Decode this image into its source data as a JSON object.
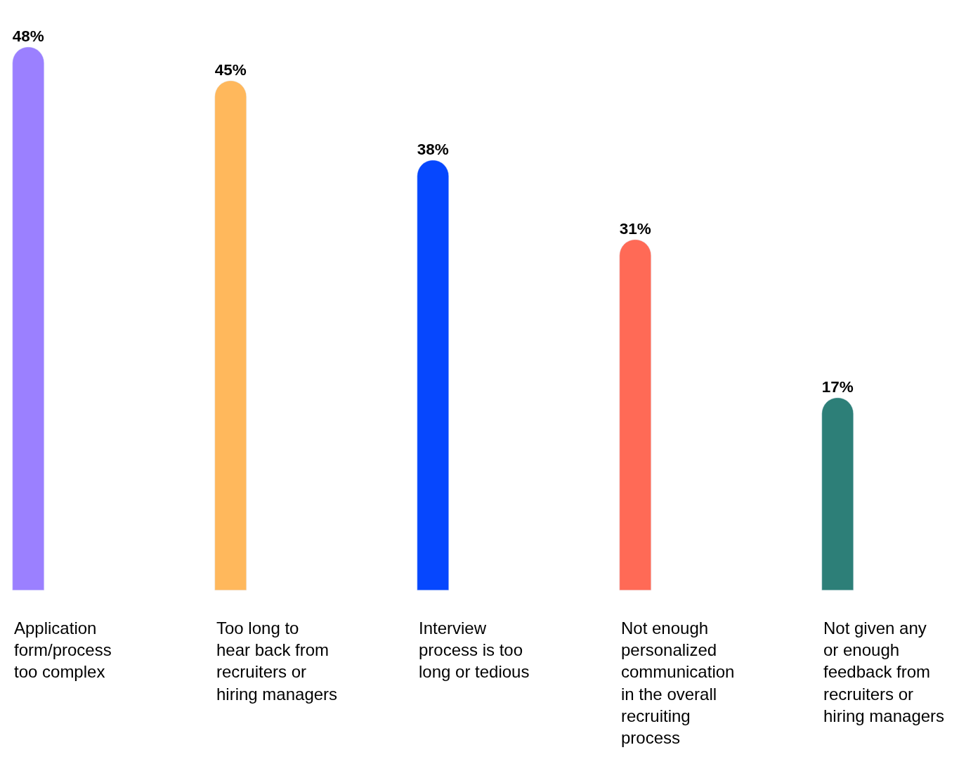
{
  "chart_data": {
    "type": "bar",
    "categories": [
      "Application form/process too complex",
      "Too long to hear back from recruiters or hiring managers",
      "Interview process is too long or tedious",
      "Not enough personalized communication  in the overall recruiting process",
      "Not given any or enough feedback from recruiters or hiring managers"
    ],
    "values": [
      48,
      45,
      38,
      31,
      17
    ],
    "colors": [
      "#9b80ff",
      "#ffb85c",
      "#0647fe",
      "#ff6a56",
      "#2d7f78"
    ],
    "value_labels": [
      "48%",
      "45%",
      "38%",
      "31%",
      "17%"
    ],
    "ylim": [
      0,
      52.16
    ],
    "legend": false
  }
}
